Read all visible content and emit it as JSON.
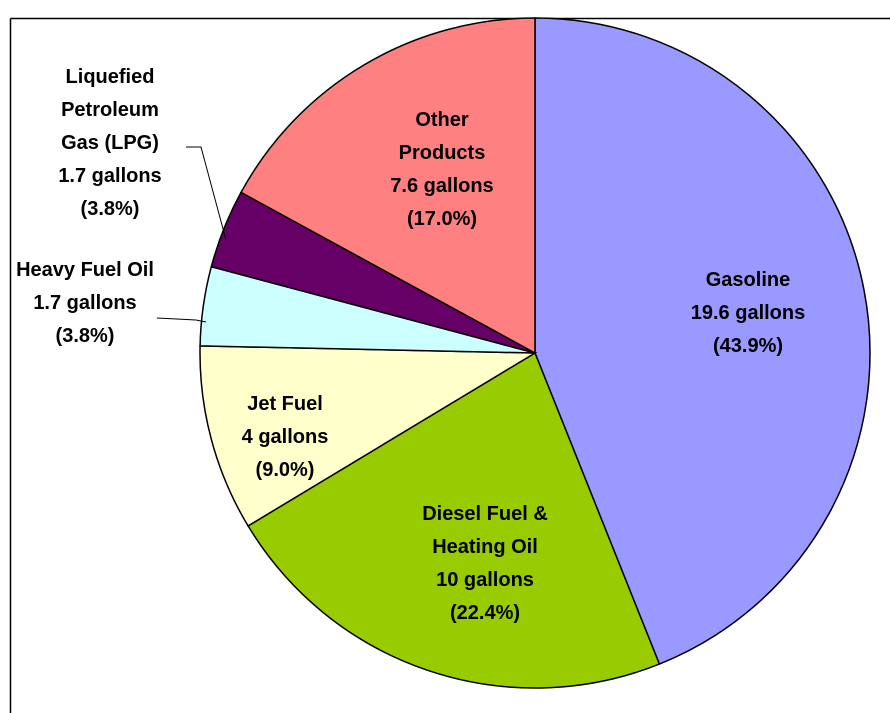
{
  "chart_data": {
    "type": "pie",
    "categories": [
      "Gasoline",
      "Diesel Fuel & Heating Oil",
      "Jet Fuel",
      "Heavy Fuel Oil",
      "Liquefied Petroleum Gas (LPG)",
      "Other Products"
    ],
    "values": [
      19.6,
      10,
      4,
      1.7,
      1.7,
      7.6
    ],
    "value_labels": [
      "19.6 gallons",
      "10 gallons",
      "4 gallons",
      "1.7 gallons",
      "1.7 gallons",
      "7.6 gallons"
    ],
    "percentages": [
      43.9,
      22.4,
      9.0,
      3.8,
      3.8,
      17.0
    ],
    "percentage_labels": [
      "(43.9%)",
      "(22.4%)",
      "(9.0%)",
      "(3.8%)",
      "(3.8%)",
      "(17.0%)"
    ],
    "colors": [
      "#9999ff",
      "#99cc00",
      "#ffffcc",
      "#ccffff",
      "#660066",
      "#ff8080"
    ]
  }
}
